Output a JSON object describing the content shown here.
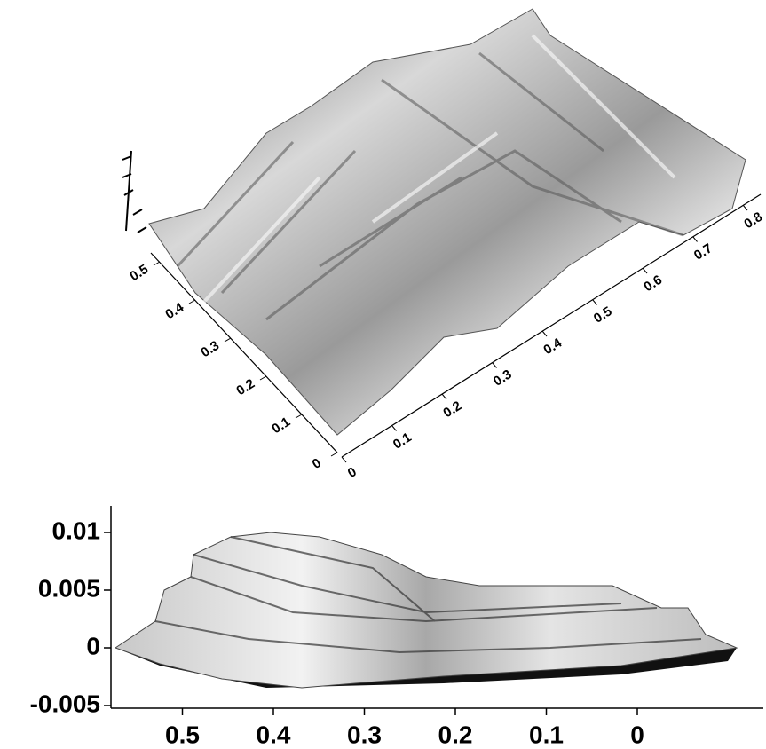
{
  "chart_data": [
    {
      "type": "surface3d",
      "xlim": [
        0,
        0.8
      ],
      "xticks": [
        0,
        0.1,
        0.2,
        0.3,
        0.4,
        0.5,
        0.6,
        0.7,
        0.8
      ],
      "ylim": [
        0,
        0.5
      ],
      "yticks": [
        0,
        0.1,
        0.2,
        0.3,
        0.4,
        0.5
      ]
    },
    {
      "type": "surface-side",
      "xlim": [
        0.56,
        0
      ],
      "xticks": [
        0.5,
        0.4,
        0.3,
        0.2,
        0.1,
        0
      ],
      "ylim": [
        -0.0055,
        0.012
      ],
      "yticks": [
        -0.005,
        0,
        0.005,
        0.01
      ]
    }
  ]
}
